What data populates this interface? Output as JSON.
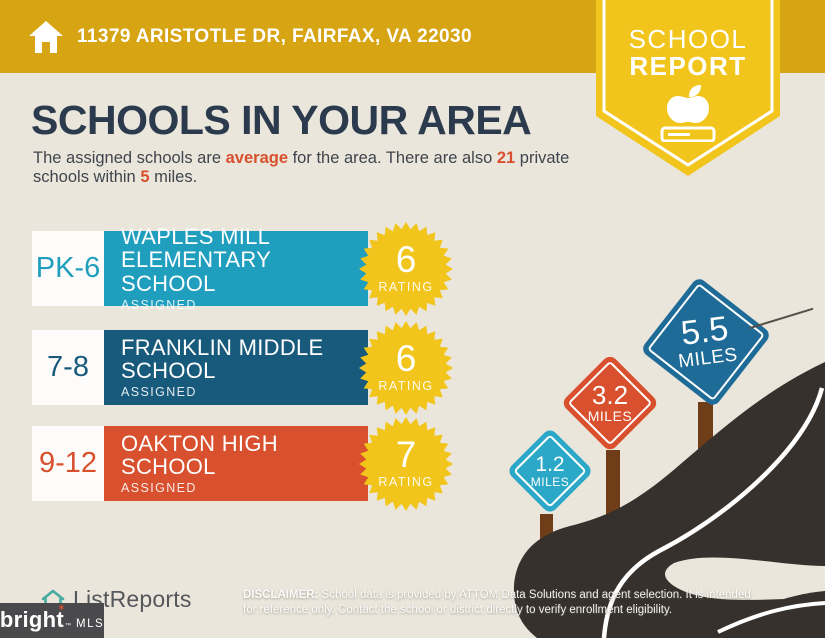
{
  "colors": {
    "header_gold": "#d7a413",
    "badge_yellow": "#f2c51c",
    "background": "#eae6db",
    "title_navy": "#2b3b4d",
    "accent_red": "#d8502d",
    "road": "#36312c",
    "post_brown": "#6f3d18",
    "sign_line": "#ffffff"
  },
  "header": {
    "address": "11379 ARISTOTLE DR, FAIRFAX, VA 22030",
    "badge_line1": "SCHOOL",
    "badge_line2": "REPORT"
  },
  "intro": {
    "title": "SCHOOLS IN YOUR AREA",
    "seg1": "The assigned schools are ",
    "hl1": "average",
    "seg2": " for the area. There are also ",
    "hl2": "21",
    "seg3": " private schools within ",
    "hl3": "5",
    "seg4": " miles."
  },
  "schools": [
    {
      "grades": "PK-6",
      "name": "WAPLES MILL ELEMENTARY SCHOOL",
      "status": "ASSIGNED",
      "rating": "6",
      "rating_label": "RATING",
      "color": "#1f9ebe"
    },
    {
      "grades": "7-8",
      "name": "FRANKLIN MIDDLE SCHOOL",
      "status": "ASSIGNED",
      "rating": "6",
      "rating_label": "RATING",
      "color": "#175a7c"
    },
    {
      "grades": "9-12",
      "name": "OAKTON HIGH SCHOOL",
      "status": "ASSIGNED",
      "rating": "7",
      "rating_label": "RATING",
      "color": "#d8502d"
    }
  ],
  "signs": [
    {
      "value": "1.2",
      "unit": "MILES",
      "color": "#2ba7c7"
    },
    {
      "value": "3.2",
      "unit": "MILES",
      "color": "#d8502d"
    },
    {
      "value": "5.5",
      "unit": "MILES",
      "color": "#1e6b98"
    }
  ],
  "footer": {
    "brand": "ListReports",
    "mls_name": "bright",
    "mls_star": "✶",
    "mls_tm": "™",
    "mls_suffix": "MLS",
    "disclaimer_label": "DISCLAIMER:",
    "disclaimer_line1": " School data is provided by ATTOM Data Solutions and agent selection. It is intended",
    "disclaimer_line2": "for reference only. Contact the school or district directly to verify enrollment eligibility."
  }
}
